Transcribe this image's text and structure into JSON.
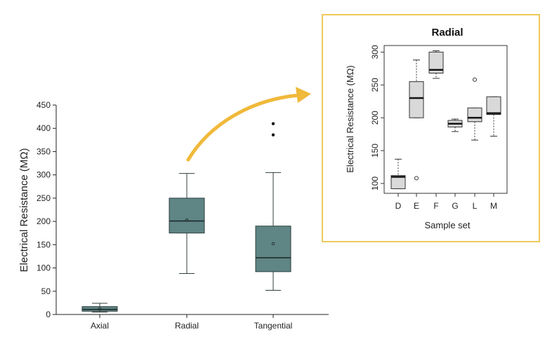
{
  "colors": {
    "main_box_fill": "#5f8585",
    "main_box_stroke": "#2f3f3f",
    "inset_box_fill": "#d9d9d9",
    "inset_border": "#eec95c",
    "arrow": "#f0b93a"
  },
  "chart_data": [
    {
      "type": "box",
      "title": "",
      "xlabel": "",
      "ylabel": "Electrical Resistance (MΩ)",
      "ylim": [
        0,
        450
      ],
      "yticks": [
        0,
        50,
        100,
        150,
        200,
        250,
        300,
        350,
        400,
        450
      ],
      "categories": [
        "Axial",
        "Radial",
        "Tangential"
      ],
      "boxes": [
        {
          "whisker_low": 5,
          "q1": 7,
          "median": 11,
          "q3": 17,
          "whisker_high": 24,
          "mean": 12,
          "outliers": []
        },
        {
          "whisker_low": 88,
          "q1": 175,
          "median": 201,
          "q3": 250,
          "whisker_high": 303,
          "mean": 203,
          "outliers": []
        },
        {
          "whisker_low": 52,
          "q1": 92,
          "median": 122,
          "q3": 190,
          "whisker_high": 305,
          "mean": 152,
          "outliers": [
            386,
            410
          ]
        }
      ],
      "grid": false
    },
    {
      "type": "box",
      "title": "Radial",
      "xlabel": "Sample set",
      "ylabel": "Electrical Resistance (MΩ)",
      "ylim": [
        85,
        310
      ],
      "yticks": [
        100,
        150,
        200,
        250,
        300
      ],
      "categories": [
        "D",
        "E",
        "F",
        "G",
        "L",
        "M"
      ],
      "boxes": [
        {
          "whisker_low": 92,
          "q1": 92,
          "median": 110,
          "q3": 112,
          "whisker_high": 137,
          "outliers": []
        },
        {
          "whisker_low": 200,
          "q1": 200,
          "median": 230,
          "q3": 255,
          "whisker_high": 288,
          "outliers": [
            108
          ]
        },
        {
          "whisker_low": 260,
          "q1": 268,
          "median": 273,
          "q3": 300,
          "whisker_high": 302,
          "outliers": []
        },
        {
          "whisker_low": 179,
          "q1": 186,
          "median": 191,
          "q3": 196,
          "whisker_high": 198,
          "outliers": []
        },
        {
          "whisker_low": 166,
          "q1": 194,
          "median": 200,
          "q3": 215,
          "whisker_high": 215,
          "outliers": [
            258
          ]
        },
        {
          "whisker_low": 172,
          "q1": 205,
          "median": 207,
          "q3": 232,
          "whisker_high": 232,
          "outliers": []
        }
      ],
      "grid": false
    }
  ]
}
